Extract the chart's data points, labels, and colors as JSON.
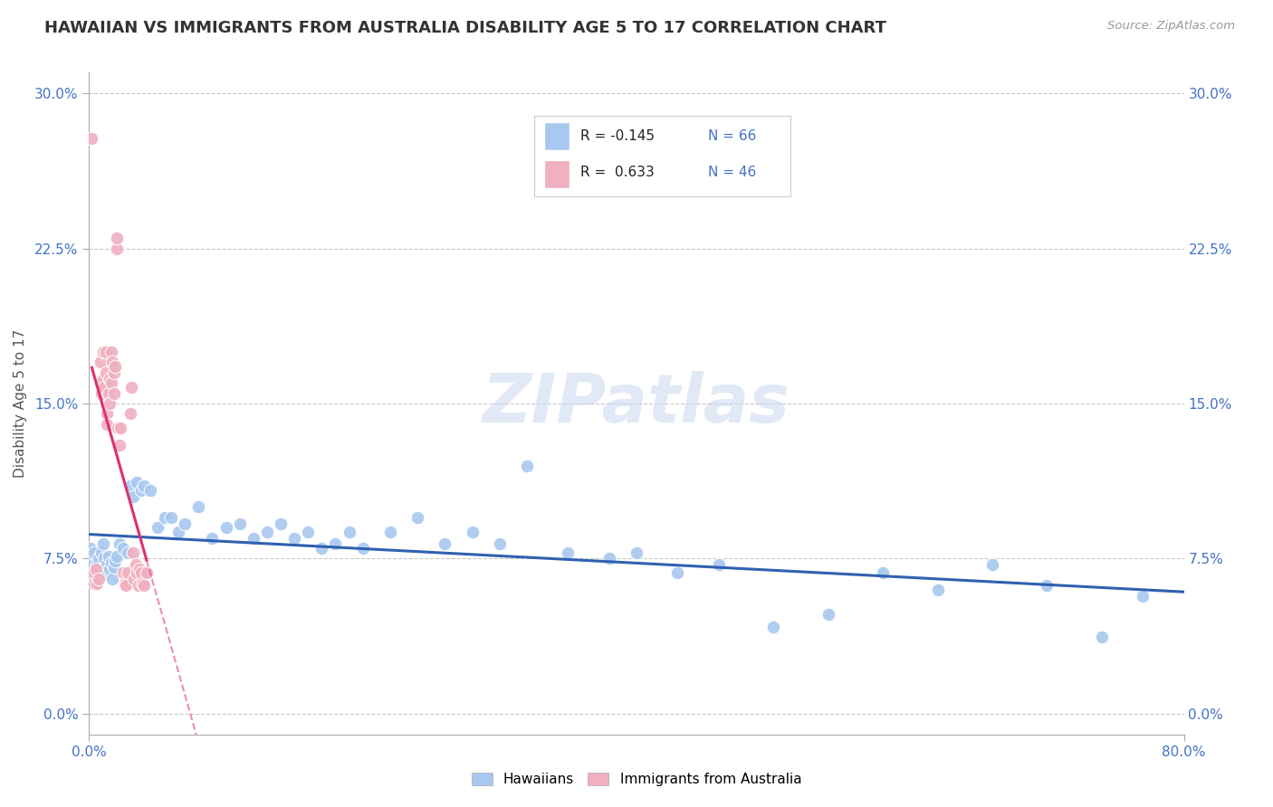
{
  "title": "HAWAIIAN VS IMMIGRANTS FROM AUSTRALIA DISABILITY AGE 5 TO 17 CORRELATION CHART",
  "source": "Source: ZipAtlas.com",
  "ylabel": "Disability Age 5 to 17",
  "xlim": [
    0.0,
    0.8
  ],
  "ylim": [
    0.0,
    0.3
  ],
  "yticks": [
    0.0,
    0.075,
    0.15,
    0.225,
    0.3
  ],
  "ytick_labels": [
    "0.0%",
    "7.5%",
    "15.0%",
    "22.5%",
    "30.0%"
  ],
  "xticks": [
    0.0,
    0.8
  ],
  "xtick_labels": [
    "0.0%",
    "80.0%"
  ],
  "title_color": "#333333",
  "title_fontsize": 13,
  "tick_label_color": "#4472c4",
  "background_color": "#ffffff",
  "grid_color": "#c8c8c8",
  "hawaiians_color": "#a8c8f0",
  "australia_color": "#f0b0c0",
  "hawaiians_line_color": "#3060b0",
  "australia_line_color": "#e03070",
  "hawaiians_x": [
    0.001,
    0.002,
    0.003,
    0.004,
    0.005,
    0.006,
    0.007,
    0.008,
    0.009,
    0.01,
    0.011,
    0.012,
    0.013,
    0.014,
    0.015,
    0.016,
    0.017,
    0.018,
    0.019,
    0.02,
    0.022,
    0.025,
    0.028,
    0.03,
    0.032,
    0.035,
    0.038,
    0.04,
    0.045,
    0.05,
    0.055,
    0.06,
    0.065,
    0.07,
    0.08,
    0.09,
    0.1,
    0.11,
    0.12,
    0.13,
    0.14,
    0.15,
    0.16,
    0.17,
    0.18,
    0.19,
    0.2,
    0.22,
    0.24,
    0.26,
    0.28,
    0.3,
    0.32,
    0.35,
    0.38,
    0.4,
    0.43,
    0.46,
    0.5,
    0.54,
    0.58,
    0.62,
    0.66,
    0.7,
    0.74,
    0.77
  ],
  "hawaiians_y": [
    0.08,
    0.075,
    0.072,
    0.078,
    0.068,
    0.072,
    0.075,
    0.07,
    0.078,
    0.082,
    0.075,
    0.068,
    0.072,
    0.076,
    0.07,
    0.073,
    0.065,
    0.071,
    0.074,
    0.076,
    0.082,
    0.08,
    0.078,
    0.11,
    0.105,
    0.112,
    0.108,
    0.11,
    0.108,
    0.09,
    0.095,
    0.095,
    0.088,
    0.092,
    0.1,
    0.085,
    0.09,
    0.092,
    0.085,
    0.088,
    0.092,
    0.085,
    0.088,
    0.08,
    0.082,
    0.088,
    0.08,
    0.088,
    0.095,
    0.082,
    0.088,
    0.082,
    0.12,
    0.078,
    0.075,
    0.078,
    0.068,
    0.072,
    0.042,
    0.048,
    0.068,
    0.06,
    0.072,
    0.062,
    0.037,
    0.057
  ],
  "australia_x": [
    0.002,
    0.003,
    0.004,
    0.005,
    0.006,
    0.007,
    0.008,
    0.008,
    0.009,
    0.01,
    0.01,
    0.011,
    0.012,
    0.012,
    0.013,
    0.013,
    0.014,
    0.015,
    0.015,
    0.016,
    0.016,
    0.017,
    0.018,
    0.018,
    0.019,
    0.02,
    0.02,
    0.021,
    0.022,
    0.023,
    0.025,
    0.026,
    0.027,
    0.028,
    0.03,
    0.031,
    0.032,
    0.033,
    0.034,
    0.035,
    0.036,
    0.037,
    0.038,
    0.039,
    0.04,
    0.042
  ],
  "australia_y": [
    0.278,
    0.068,
    0.063,
    0.07,
    0.063,
    0.065,
    0.16,
    0.17,
    0.155,
    0.162,
    0.175,
    0.158,
    0.165,
    0.175,
    0.145,
    0.14,
    0.155,
    0.15,
    0.162,
    0.16,
    0.175,
    0.17,
    0.155,
    0.165,
    0.168,
    0.225,
    0.23,
    0.138,
    0.13,
    0.138,
    0.068,
    0.063,
    0.062,
    0.068,
    0.145,
    0.158,
    0.078,
    0.065,
    0.072,
    0.068,
    0.062,
    0.07,
    0.068,
    0.063,
    0.062,
    0.068
  ]
}
